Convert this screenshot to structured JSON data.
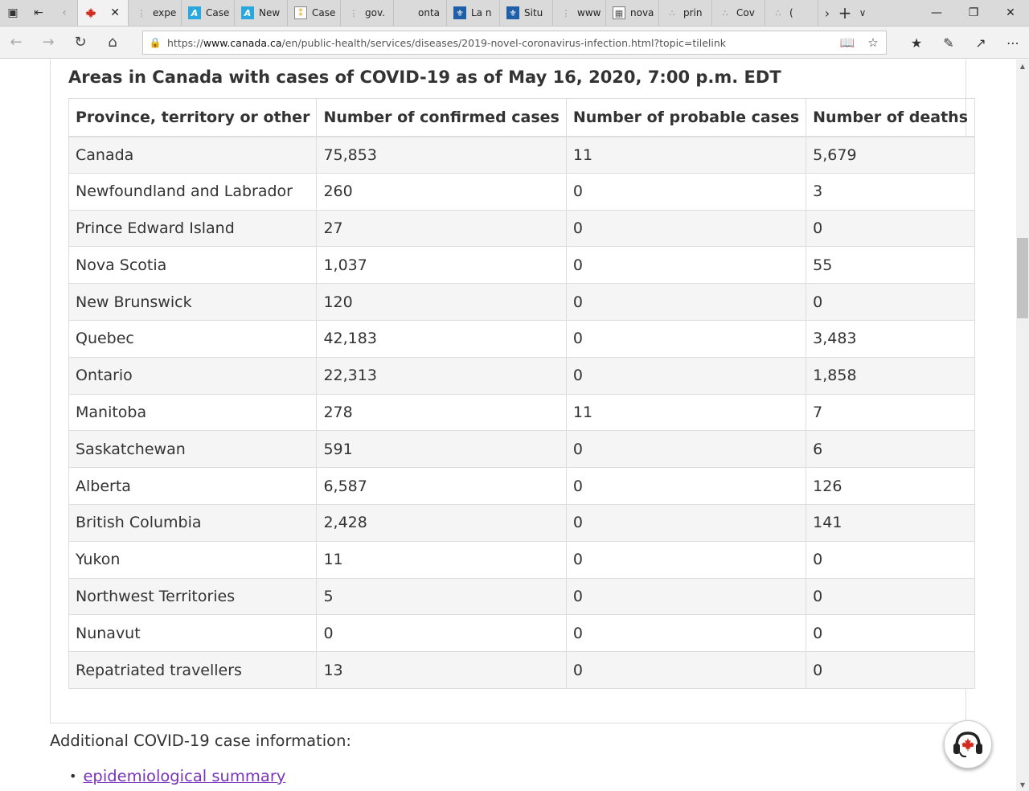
{
  "browser": {
    "tabs": [
      {
        "label": "expe",
        "icon": "dots-icon"
      },
      {
        "label": "Case",
        "icon": "ab-icon"
      },
      {
        "label": "New",
        "icon": "ab-icon"
      },
      {
        "label": "Case",
        "icon": "doc-icon"
      },
      {
        "label": "gov.",
        "icon": "dots-icon"
      },
      {
        "label": "onta",
        "icon": "blank-icon"
      },
      {
        "label": "La n",
        "icon": "fleur-icon"
      },
      {
        "label": "Situ",
        "icon": "fleur-icon"
      },
      {
        "label": "www",
        "icon": "dots-icon"
      },
      {
        "label": "nova",
        "icon": "image-icon"
      },
      {
        "label": "prin",
        "icon": "loading-icon"
      },
      {
        "label": "Cov",
        "icon": "loading-icon"
      },
      {
        "label": "(",
        "icon": "loading-icon"
      }
    ],
    "url_prefix": "https://",
    "url_host": "www.canada.ca",
    "url_path": "/en/public-health/services/diseases/2019-novel-coronavirus-infection.html?topic=tilelink"
  },
  "page": {
    "caption": "Areas in Canada with cases of COVID-19 as of May 16, 2020, 7:00 p.m. EDT",
    "columns": [
      "Province, territory or other",
      "Number of confirmed cases",
      "Number of probable cases",
      "Number of deaths"
    ],
    "rows": [
      [
        "Canada",
        "75,853",
        "11",
        "5,679"
      ],
      [
        "Newfoundland and Labrador",
        "260",
        "0",
        "3"
      ],
      [
        "Prince Edward Island",
        "27",
        "0",
        "0"
      ],
      [
        "Nova Scotia",
        "1,037",
        "0",
        "55"
      ],
      [
        "New Brunswick",
        "120",
        "0",
        "0"
      ],
      [
        "Quebec",
        "42,183",
        "0",
        "3,483"
      ],
      [
        "Ontario",
        "22,313",
        "0",
        "1,858"
      ],
      [
        "Manitoba",
        "278",
        "11",
        "7"
      ],
      [
        "Saskatchewan",
        "591",
        "0",
        "6"
      ],
      [
        "Alberta",
        "6,587",
        "0",
        "126"
      ],
      [
        "British Columbia",
        "2,428",
        "0",
        "141"
      ],
      [
        "Yukon",
        "11",
        "0",
        "0"
      ],
      [
        "Northwest Territories",
        "5",
        "0",
        "0"
      ],
      [
        "Nunavut",
        "0",
        "0",
        "0"
      ],
      [
        "Repatriated travellers",
        "13",
        "0",
        "0"
      ]
    ],
    "additional_heading": "Additional COVID-19 case information:",
    "link_label": "epidemiological summary"
  },
  "colors": {
    "link": "#7834bc",
    "maple_red": "#d52b1e",
    "row_stripe": "#f5f5f5"
  }
}
